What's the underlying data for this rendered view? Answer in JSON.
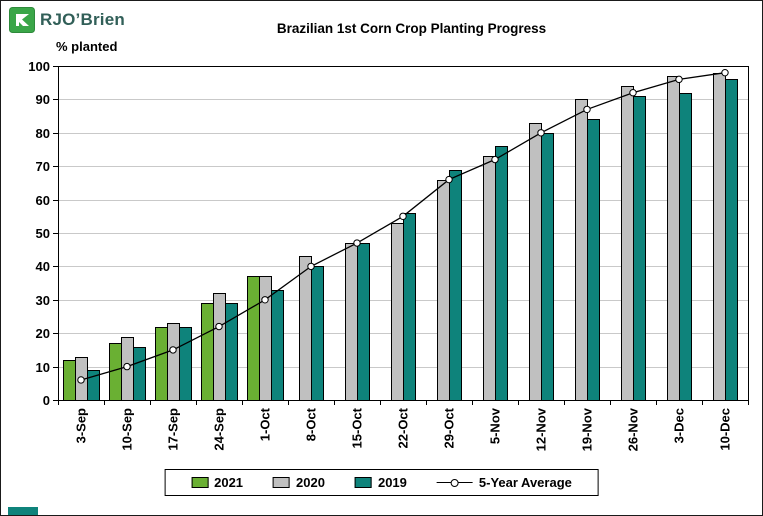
{
  "logo": {
    "brand": "RJO’Brien"
  },
  "chart_data": {
    "type": "bar",
    "title": "Brazilian 1st Corn Crop Planting Progress",
    "ylabel": "% planted",
    "ylim": [
      0,
      100
    ],
    "ytick_step": 10,
    "grid": true,
    "legend_position": "bottom",
    "categories": [
      "3-Sep",
      "10-Sep",
      "17-Sep",
      "24-Sep",
      "1-Oct",
      "8-Oct",
      "15-Oct",
      "22-Oct",
      "29-Oct",
      "5-Nov",
      "12-Nov",
      "19-Nov",
      "26-Nov",
      "3-Dec",
      "10-Dec"
    ],
    "series": [
      {
        "name": "2021",
        "type": "bar",
        "color": "#6ab033",
        "values": [
          12,
          17,
          22,
          29,
          37,
          null,
          null,
          null,
          null,
          null,
          null,
          null,
          null,
          null,
          null
        ]
      },
      {
        "name": "2020",
        "type": "bar",
        "color": "#c0c0c0",
        "values": [
          13,
          19,
          23,
          32,
          37,
          43,
          47,
          53,
          66,
          73,
          83,
          90,
          94,
          97,
          98
        ]
      },
      {
        "name": "2019",
        "type": "bar",
        "color": "#0e837b",
        "values": [
          9,
          16,
          22,
          29,
          33,
          40,
          47,
          56,
          69,
          76,
          80,
          84,
          91,
          92,
          96
        ]
      },
      {
        "name": "5-Year Average",
        "type": "line",
        "color": "#000000",
        "values": [
          6,
          10,
          15,
          22,
          30,
          40,
          47,
          55,
          66,
          72,
          80,
          87,
          92,
          96,
          98
        ]
      }
    ]
  }
}
